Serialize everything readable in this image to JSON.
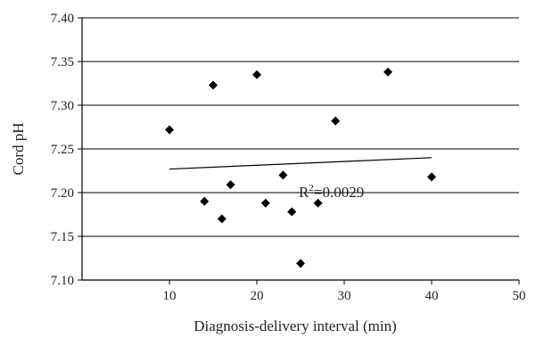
{
  "chart_data": {
    "type": "scatter",
    "xlabel": "Diagnosis-delivery interval (min)",
    "ylabel": "Cord pH",
    "xlim": [
      0,
      50
    ],
    "ylim": [
      7.1,
      7.4
    ],
    "x_ticks": [
      "10",
      "20",
      "30",
      "40",
      "50"
    ],
    "y_ticks": [
      "7.10",
      "7.15",
      "7.20",
      "7.25",
      "7.30",
      "7.35",
      "7.40"
    ],
    "grid": "horizontal",
    "marker": "diamond",
    "points": [
      {
        "x": 10,
        "y": 7.272
      },
      {
        "x": 14,
        "y": 7.19
      },
      {
        "x": 15,
        "y": 7.323
      },
      {
        "x": 16,
        "y": 7.17
      },
      {
        "x": 17,
        "y": 7.209
      },
      {
        "x": 20,
        "y": 7.335
      },
      {
        "x": 21,
        "y": 7.188
      },
      {
        "x": 23,
        "y": 7.22
      },
      {
        "x": 24,
        "y": 7.178
      },
      {
        "x": 25,
        "y": 7.119
      },
      {
        "x": 27,
        "y": 7.188
      },
      {
        "x": 29,
        "y": 7.282
      },
      {
        "x": 35,
        "y": 7.338
      },
      {
        "x": 40,
        "y": 7.218
      }
    ],
    "trendline": {
      "x": [
        10,
        40
      ],
      "y": [
        7.227,
        7.24
      ]
    },
    "annotation": {
      "text_main": "R",
      "text_sup": "2",
      "text_tail": "=0.0029"
    }
  }
}
